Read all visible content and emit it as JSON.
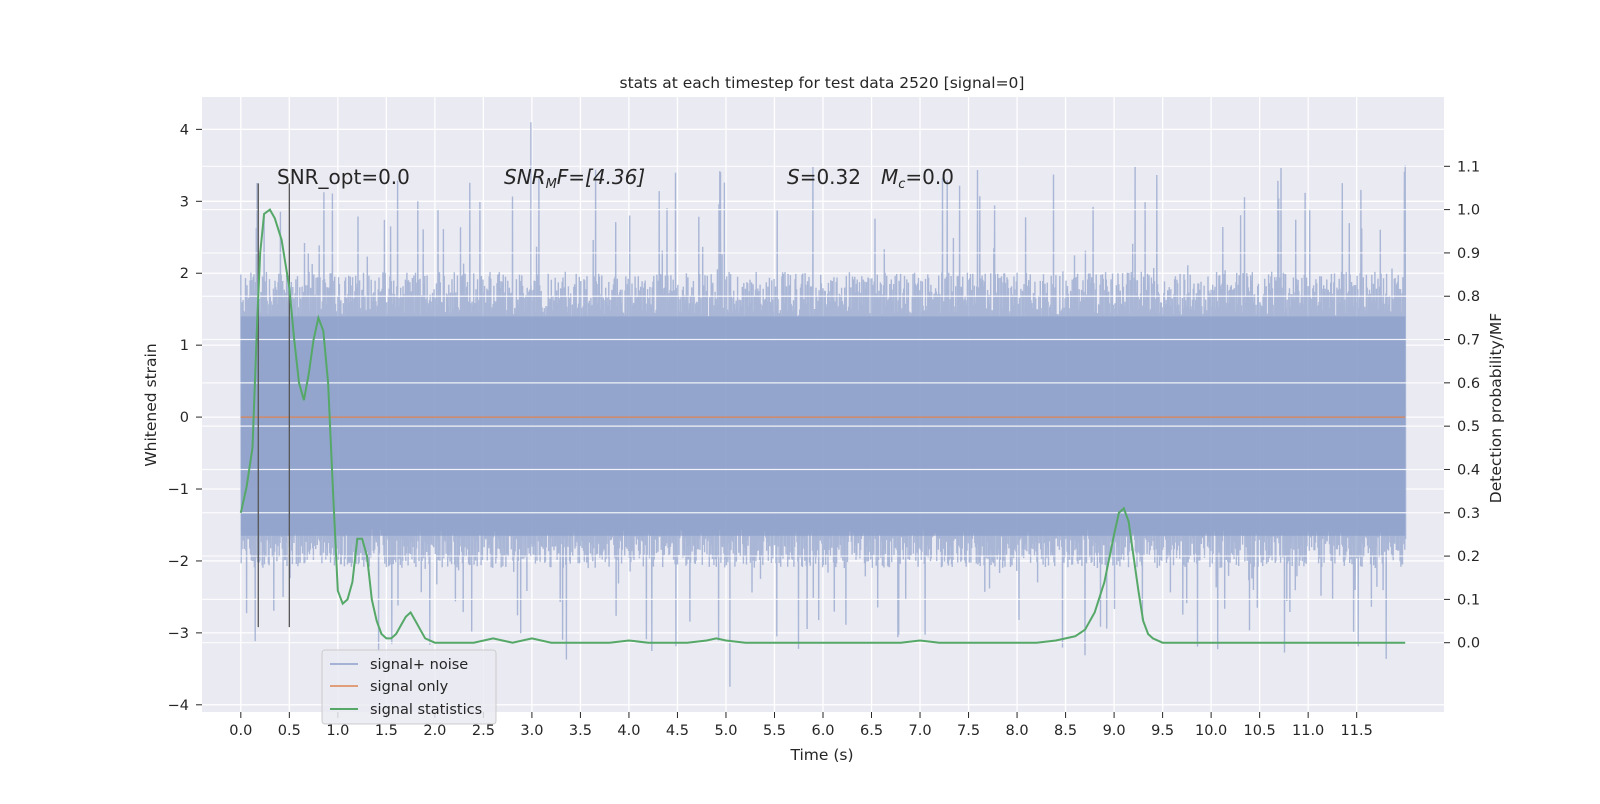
{
  "chart_data": {
    "type": "line",
    "title": "stats at each timestep for test data 2520 [signal=0]",
    "xlabel": "Time (s)",
    "ylabel": "Whitened strain",
    "y2label": "Detection probability/MF",
    "xlim": [
      -0.4,
      12.4
    ],
    "ylim": [
      -4.1,
      4.45
    ],
    "y2lim": [
      -0.16,
      1.26
    ],
    "x_ticks": [
      "0.0",
      "0.5",
      "1.0",
      "1.5",
      "2.0",
      "2.5",
      "3.0",
      "3.5",
      "4.0",
      "4.5",
      "5.0",
      "5.5",
      "6.0",
      "6.5",
      "7.0",
      "7.5",
      "8.0",
      "8.5",
      "9.0",
      "9.5",
      "10.0",
      "10.5",
      "11.0",
      "11.5"
    ],
    "y_ticks": [
      "4",
      "3",
      "2",
      "1",
      "0",
      "−1",
      "−2",
      "−3",
      "−4"
    ],
    "y2_ticks": [
      "1.1",
      "1.0",
      "0.9",
      "0.8",
      "0.7",
      "0.6",
      "0.5",
      "0.4",
      "0.3",
      "0.2",
      "0.1",
      "0.0"
    ],
    "grid": true,
    "legend_position": "lower-left",
    "annotations": {
      "snr_opt": "SNR_opt=0.0",
      "snr_mf_name": "SNR",
      "snr_mf_sub": "M",
      "snr_mf_tail": "F=[4.36]",
      "s_name": "S",
      "s_value": "=0.32",
      "mc_name": "M",
      "mc_sub": "c",
      "mc_value": "=0.0"
    },
    "markers_x": [
      0.18,
      0.5
    ],
    "series": [
      {
        "name": "signal+ noise",
        "axis": "left",
        "color": "#8da0cb",
        "description": "whitened strain noise, dense band between about -1.7 and 1.4 with spikes up to 4.1 and down to -3.75",
        "x_range": [
          0.0,
          12.0
        ],
        "envelope_high": 2.0,
        "envelope_low": -1.8,
        "outlier_max": 4.1,
        "outlier_min": -3.75
      },
      {
        "name": "signal only",
        "axis": "left",
        "color": "#dd8452",
        "x": [
          0.0,
          12.0
        ],
        "y": [
          0.0,
          0.0
        ]
      },
      {
        "name": "signal statistics",
        "axis": "right",
        "color": "#55a868",
        "x": [
          0.0,
          0.06,
          0.12,
          0.17,
          0.2,
          0.24,
          0.3,
          0.35,
          0.42,
          0.5,
          0.55,
          0.6,
          0.65,
          0.7,
          0.75,
          0.8,
          0.85,
          0.9,
          0.95,
          1.0,
          1.05,
          1.1,
          1.15,
          1.2,
          1.25,
          1.3,
          1.35,
          1.4,
          1.45,
          1.5,
          1.55,
          1.6,
          1.65,
          1.7,
          1.75,
          1.8,
          1.85,
          1.9,
          2.0,
          2.2,
          2.4,
          2.6,
          2.8,
          3.0,
          3.2,
          3.4,
          3.6,
          3.8,
          4.0,
          4.2,
          4.4,
          4.6,
          4.8,
          4.9,
          5.0,
          5.2,
          5.4,
          5.6,
          5.8,
          6.0,
          6.2,
          6.4,
          6.6,
          6.8,
          7.0,
          7.2,
          7.4,
          7.6,
          7.8,
          8.0,
          8.2,
          8.4,
          8.5,
          8.6,
          8.7,
          8.8,
          8.9,
          9.0,
          9.05,
          9.1,
          9.15,
          9.2,
          9.25,
          9.3,
          9.35,
          9.4,
          9.5,
          9.7,
          10.0,
          10.5,
          11.0,
          11.5,
          12.0
        ],
        "y": [
          0.3,
          0.36,
          0.45,
          0.75,
          0.9,
          0.99,
          1.0,
          0.98,
          0.93,
          0.82,
          0.7,
          0.6,
          0.56,
          0.62,
          0.7,
          0.75,
          0.72,
          0.6,
          0.35,
          0.12,
          0.09,
          0.1,
          0.14,
          0.24,
          0.24,
          0.2,
          0.1,
          0.05,
          0.02,
          0.01,
          0.01,
          0.02,
          0.04,
          0.06,
          0.07,
          0.05,
          0.03,
          0.01,
          0.0,
          0.0,
          0.0,
          0.01,
          0.0,
          0.01,
          0.0,
          0.0,
          0.0,
          0.0,
          0.005,
          0.0,
          0.0,
          0.0,
          0.005,
          0.01,
          0.005,
          0.0,
          0.0,
          0.0,
          0.0,
          0.0,
          0.0,
          0.0,
          0.0,
          0.0,
          0.005,
          0.0,
          0.0,
          0.0,
          0.0,
          0.0,
          0.0,
          0.005,
          0.01,
          0.015,
          0.03,
          0.07,
          0.14,
          0.25,
          0.3,
          0.31,
          0.28,
          0.2,
          0.12,
          0.05,
          0.02,
          0.01,
          0.0,
          0.0,
          0.0,
          0.0,
          0.0,
          0.0,
          0.0
        ]
      }
    ]
  }
}
